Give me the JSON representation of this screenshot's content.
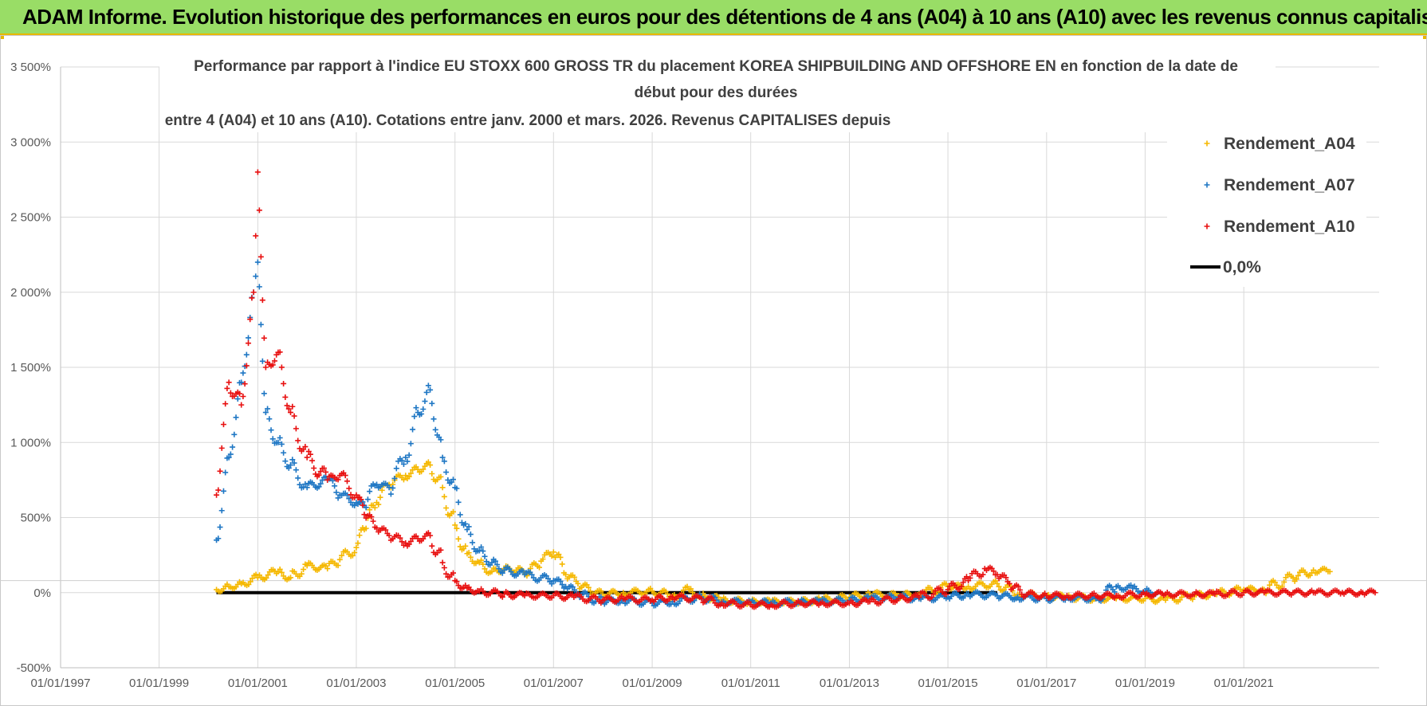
{
  "header": {
    "title": "ADAM Informe. Evolution historique des performances en euros pour des détentions de 4 ans (A04) à 10 ans (A10) avec les revenus connus capitalisés"
  },
  "chart_data": {
    "type": "scatter",
    "title_lines": [
      "Performance par rapport à l'indice EU STOXX 600 GROSS TR  du placement KOREA SHIPBUILDING AND OFFSHORE EN en fonction de la date de",
      "début pour des durées",
      "entre 4 (A04) et 10 ans (A10). Cotations entre janv. 2000 et mars. 2026. Revenus CAPITALISES depuis"
    ],
    "xlabel": "",
    "ylabel": "",
    "x_ticks": [
      "01/01/1997",
      "01/01/1999",
      "01/01/2001",
      "01/01/2003",
      "01/01/2005",
      "01/01/2007",
      "01/01/2009",
      "01/01/2011",
      "01/01/2013",
      "01/01/2015",
      "01/01/2017",
      "01/01/2019",
      "01/01/2021"
    ],
    "xlim": [
      "1997-01-01",
      "2023-10-01"
    ],
    "y_ticks": [
      "-500%",
      "0%",
      "500%",
      "1 000%",
      "1 500%",
      "2 000%",
      "2 500%",
      "3 000%",
      "3 500%"
    ],
    "ylim": [
      -500,
      3500
    ],
    "grid": true,
    "legend_position": "top-right",
    "series": [
      {
        "name": "Rendement_A04",
        "color": "#f5b800",
        "marker": "plus",
        "points": [
          [
            "2000-03-01",
            20
          ],
          [
            "2000-06-01",
            40
          ],
          [
            "2000-09-01",
            60
          ],
          [
            "2001-01-01",
            100
          ],
          [
            "2001-06-01",
            140
          ],
          [
            "2001-09-01",
            100
          ],
          [
            "2002-01-01",
            180
          ],
          [
            "2002-06-01",
            160
          ],
          [
            "2002-09-01",
            220
          ],
          [
            "2003-01-01",
            300
          ],
          [
            "2003-03-01",
            420
          ],
          [
            "2003-06-01",
            600
          ],
          [
            "2003-09-01",
            720
          ],
          [
            "2004-01-01",
            780
          ],
          [
            "2004-04-01",
            820
          ],
          [
            "2004-07-01",
            850
          ],
          [
            "2004-10-01",
            700
          ],
          [
            "2005-01-01",
            450
          ],
          [
            "2005-04-01",
            260
          ],
          [
            "2005-07-01",
            200
          ],
          [
            "2005-10-01",
            140
          ],
          [
            "2006-01-01",
            160
          ],
          [
            "2006-04-01",
            150
          ],
          [
            "2006-07-01",
            130
          ],
          [
            "2006-10-01",
            210
          ],
          [
            "2007-01-01",
            270
          ],
          [
            "2007-04-01",
            120
          ],
          [
            "2007-07-01",
            60
          ],
          [
            "2007-10-01",
            10
          ],
          [
            "2008-01-01",
            -10
          ],
          [
            "2008-06-01",
            0
          ],
          [
            "2009-01-01",
            10
          ],
          [
            "2009-06-01",
            -20
          ],
          [
            "2009-10-01",
            20
          ],
          [
            "2010-01-01",
            -20
          ],
          [
            "2010-06-01",
            -50
          ],
          [
            "2011-01-01",
            -60
          ],
          [
            "2011-06-01",
            -60
          ],
          [
            "2012-01-01",
            -60
          ],
          [
            "2012-06-01",
            -50
          ],
          [
            "2013-01-01",
            -30
          ],
          [
            "2013-06-01",
            -10
          ],
          [
            "2014-01-01",
            -20
          ],
          [
            "2014-06-01",
            -10
          ],
          [
            "2015-01-01",
            40
          ],
          [
            "2015-06-01",
            40
          ],
          [
            "2016-01-01",
            60
          ],
          [
            "2016-06-01",
            -10
          ],
          [
            "2017-01-01",
            -20
          ],
          [
            "2017-06-01",
            -30
          ],
          [
            "2018-01-01",
            -40
          ],
          [
            "2018-06-01",
            -40
          ],
          [
            "2019-01-01",
            -40
          ],
          [
            "2019-06-01",
            -50
          ],
          [
            "2020-01-01",
            -20
          ],
          [
            "2020-06-01",
            -10
          ],
          [
            "2021-01-01",
            20
          ],
          [
            "2021-06-01",
            20
          ],
          [
            "2022-01-01",
            100
          ],
          [
            "2022-06-01",
            150
          ],
          [
            "2022-10-01",
            140
          ]
        ]
      },
      {
        "name": "Rendement_A07",
        "color": "#1f77c4",
        "marker": "plus",
        "points": [
          [
            "2000-03-01",
            350
          ],
          [
            "2000-06-01",
            900
          ],
          [
            "2000-09-01",
            1400
          ],
          [
            "2000-12-01",
            2000
          ],
          [
            "2001-01-01",
            2200
          ],
          [
            "2001-03-01",
            1200
          ],
          [
            "2001-06-01",
            1000
          ],
          [
            "2001-09-01",
            850
          ],
          [
            "2002-01-01",
            700
          ],
          [
            "2002-06-01",
            750
          ],
          [
            "2002-09-01",
            650
          ],
          [
            "2003-01-01",
            600
          ],
          [
            "2003-03-01",
            580
          ],
          [
            "2003-06-01",
            720
          ],
          [
            "2003-09-01",
            700
          ],
          [
            "2004-01-01",
            900
          ],
          [
            "2004-04-01",
            1200
          ],
          [
            "2004-07-01",
            1350
          ],
          [
            "2004-10-01",
            900
          ],
          [
            "2005-01-01",
            700
          ],
          [
            "2005-04-01",
            420
          ],
          [
            "2005-07-01",
            280
          ],
          [
            "2005-10-01",
            200
          ],
          [
            "2006-01-01",
            150
          ],
          [
            "2006-06-01",
            120
          ],
          [
            "2007-01-01",
            80
          ],
          [
            "2007-04-01",
            40
          ],
          [
            "2007-07-01",
            -10
          ],
          [
            "2008-01-01",
            -60
          ],
          [
            "2008-06-01",
            -50
          ],
          [
            "2009-01-01",
            -70
          ],
          [
            "2009-06-01",
            -60
          ],
          [
            "2010-01-01",
            -30
          ],
          [
            "2010-06-01",
            -60
          ],
          [
            "2011-01-01",
            -60
          ],
          [
            "2011-06-01",
            -70
          ],
          [
            "2012-01-01",
            -60
          ],
          [
            "2012-06-01",
            -60
          ],
          [
            "2013-01-01",
            -50
          ],
          [
            "2013-06-01",
            -40
          ],
          [
            "2014-01-01",
            -30
          ],
          [
            "2014-06-01",
            -40
          ],
          [
            "2015-01-01",
            -30
          ],
          [
            "2015-06-01",
            -10
          ],
          [
            "2016-01-01",
            -20
          ],
          [
            "2016-06-01",
            -30
          ],
          [
            "2017-01-01",
            -40
          ],
          [
            "2017-06-01",
            -30
          ],
          [
            "2018-01-01",
            -40
          ],
          [
            "2018-06-01",
            40
          ],
          [
            "2018-10-01",
            30
          ],
          [
            "2019-01-01",
            10
          ],
          [
            "2019-04-01",
            0
          ]
        ]
      },
      {
        "name": "Rendement_A10",
        "color": "#e81010",
        "marker": "plus",
        "points": [
          [
            "2000-03-01",
            650
          ],
          [
            "2000-06-01",
            1400
          ],
          [
            "2000-09-01",
            1250
          ],
          [
            "2000-12-01",
            2000
          ],
          [
            "2001-01-01",
            2800
          ],
          [
            "2001-03-01",
            1500
          ],
          [
            "2001-06-01",
            1600
          ],
          [
            "2001-09-01",
            1200
          ],
          [
            "2002-01-01",
            900
          ],
          [
            "2002-06-01",
            750
          ],
          [
            "2002-09-01",
            780
          ],
          [
            "2003-01-01",
            650
          ],
          [
            "2003-03-01",
            520
          ],
          [
            "2003-06-01",
            430
          ],
          [
            "2003-09-01",
            380
          ],
          [
            "2004-01-01",
            330
          ],
          [
            "2004-04-01",
            360
          ],
          [
            "2004-07-01",
            380
          ],
          [
            "2004-10-01",
            200
          ],
          [
            "2005-01-01",
            80
          ],
          [
            "2005-04-01",
            30
          ],
          [
            "2005-07-01",
            10
          ],
          [
            "2006-01-01",
            -10
          ],
          [
            "2006-06-01",
            -20
          ],
          [
            "2007-01-01",
            -20
          ],
          [
            "2007-06-01",
            -30
          ],
          [
            "2008-01-01",
            -50
          ],
          [
            "2008-06-01",
            -40
          ],
          [
            "2009-01-01",
            -50
          ],
          [
            "2009-06-01",
            -30
          ],
          [
            "2010-01-01",
            -40
          ],
          [
            "2010-06-01",
            -70
          ],
          [
            "2011-01-01",
            -80
          ],
          [
            "2011-06-01",
            -80
          ],
          [
            "2012-01-01",
            -70
          ],
          [
            "2012-06-01",
            -70
          ],
          [
            "2013-01-01",
            -70
          ],
          [
            "2013-06-01",
            -60
          ],
          [
            "2014-01-01",
            -40
          ],
          [
            "2014-06-01",
            -30
          ],
          [
            "2015-01-01",
            20
          ],
          [
            "2015-06-01",
            80
          ],
          [
            "2015-10-01",
            160
          ],
          [
            "2016-01-01",
            120
          ],
          [
            "2016-04-01",
            60
          ],
          [
            "2016-07-01",
            -10
          ],
          [
            "2017-01-01",
            -20
          ],
          [
            "2017-06-01",
            -20
          ],
          [
            "2018-01-01",
            -20
          ],
          [
            "2018-06-01",
            -20
          ],
          [
            "2019-01-01",
            -10
          ],
          [
            "2019-06-01",
            -10
          ],
          [
            "2020-01-01",
            -10
          ],
          [
            "2020-06-01",
            -10
          ],
          [
            "2021-01-01",
            0
          ],
          [
            "2021-06-01",
            0
          ],
          [
            "2022-01-01",
            0
          ],
          [
            "2022-06-01",
            0
          ],
          [
            "2023-01-01",
            0
          ],
          [
            "2023-06-01",
            0
          ],
          [
            "2023-09-01",
            0
          ]
        ]
      },
      {
        "name": "0,0%",
        "color": "#000000",
        "marker": "line",
        "points": [
          [
            "2000-03-01",
            0
          ],
          [
            "2016-01-01",
            0
          ]
        ]
      }
    ]
  }
}
